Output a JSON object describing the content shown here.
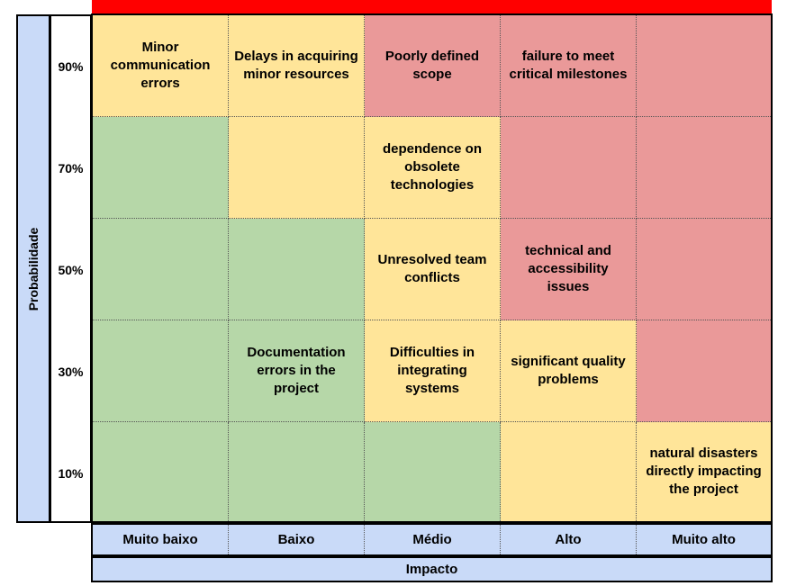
{
  "colors": {
    "top_bar": "#ff0000",
    "green": "#b6d7a8",
    "yellow": "#ffe599",
    "red": "#ea9999",
    "axis_bg": "#c9daf8"
  },
  "y_axis_label": "Probabilidade",
  "x_axis_label": "Impacto",
  "probabilities": [
    "90%",
    "70%",
    "50%",
    "30%",
    "10%"
  ],
  "impacts": [
    "Muito baixo",
    "Baixo",
    "Médio",
    "Alto",
    "Muito alto"
  ],
  "matrix": [
    [
      {
        "color": "yellow",
        "text": "Minor communication errors"
      },
      {
        "color": "yellow",
        "text": "Delays in acquiring minor resources"
      },
      {
        "color": "red",
        "text": "Poorly defined scope"
      },
      {
        "color": "red",
        "text": "failure to meet critical milestones"
      },
      {
        "color": "red",
        "text": ""
      }
    ],
    [
      {
        "color": "green",
        "text": ""
      },
      {
        "color": "yellow",
        "text": ""
      },
      {
        "color": "yellow",
        "text": "dependence on obsolete technologies"
      },
      {
        "color": "red",
        "text": ""
      },
      {
        "color": "red",
        "text": ""
      }
    ],
    [
      {
        "color": "green",
        "text": ""
      },
      {
        "color": "green",
        "text": ""
      },
      {
        "color": "yellow",
        "text": "Unresolved team conflicts"
      },
      {
        "color": "red",
        "text": "technical and accessibility issues"
      },
      {
        "color": "red",
        "text": ""
      }
    ],
    [
      {
        "color": "green",
        "text": ""
      },
      {
        "color": "green",
        "text": "Documentation errors in the project"
      },
      {
        "color": "yellow",
        "text": "Difficulties in integrating systems"
      },
      {
        "color": "yellow",
        "text": "significant quality problems"
      },
      {
        "color": "red",
        "text": ""
      }
    ],
    [
      {
        "color": "green",
        "text": ""
      },
      {
        "color": "green",
        "text": ""
      },
      {
        "color": "green",
        "text": ""
      },
      {
        "color": "yellow",
        "text": ""
      },
      {
        "color": "yellow",
        "text": "natural disasters directly impacting the project"
      }
    ]
  ]
}
